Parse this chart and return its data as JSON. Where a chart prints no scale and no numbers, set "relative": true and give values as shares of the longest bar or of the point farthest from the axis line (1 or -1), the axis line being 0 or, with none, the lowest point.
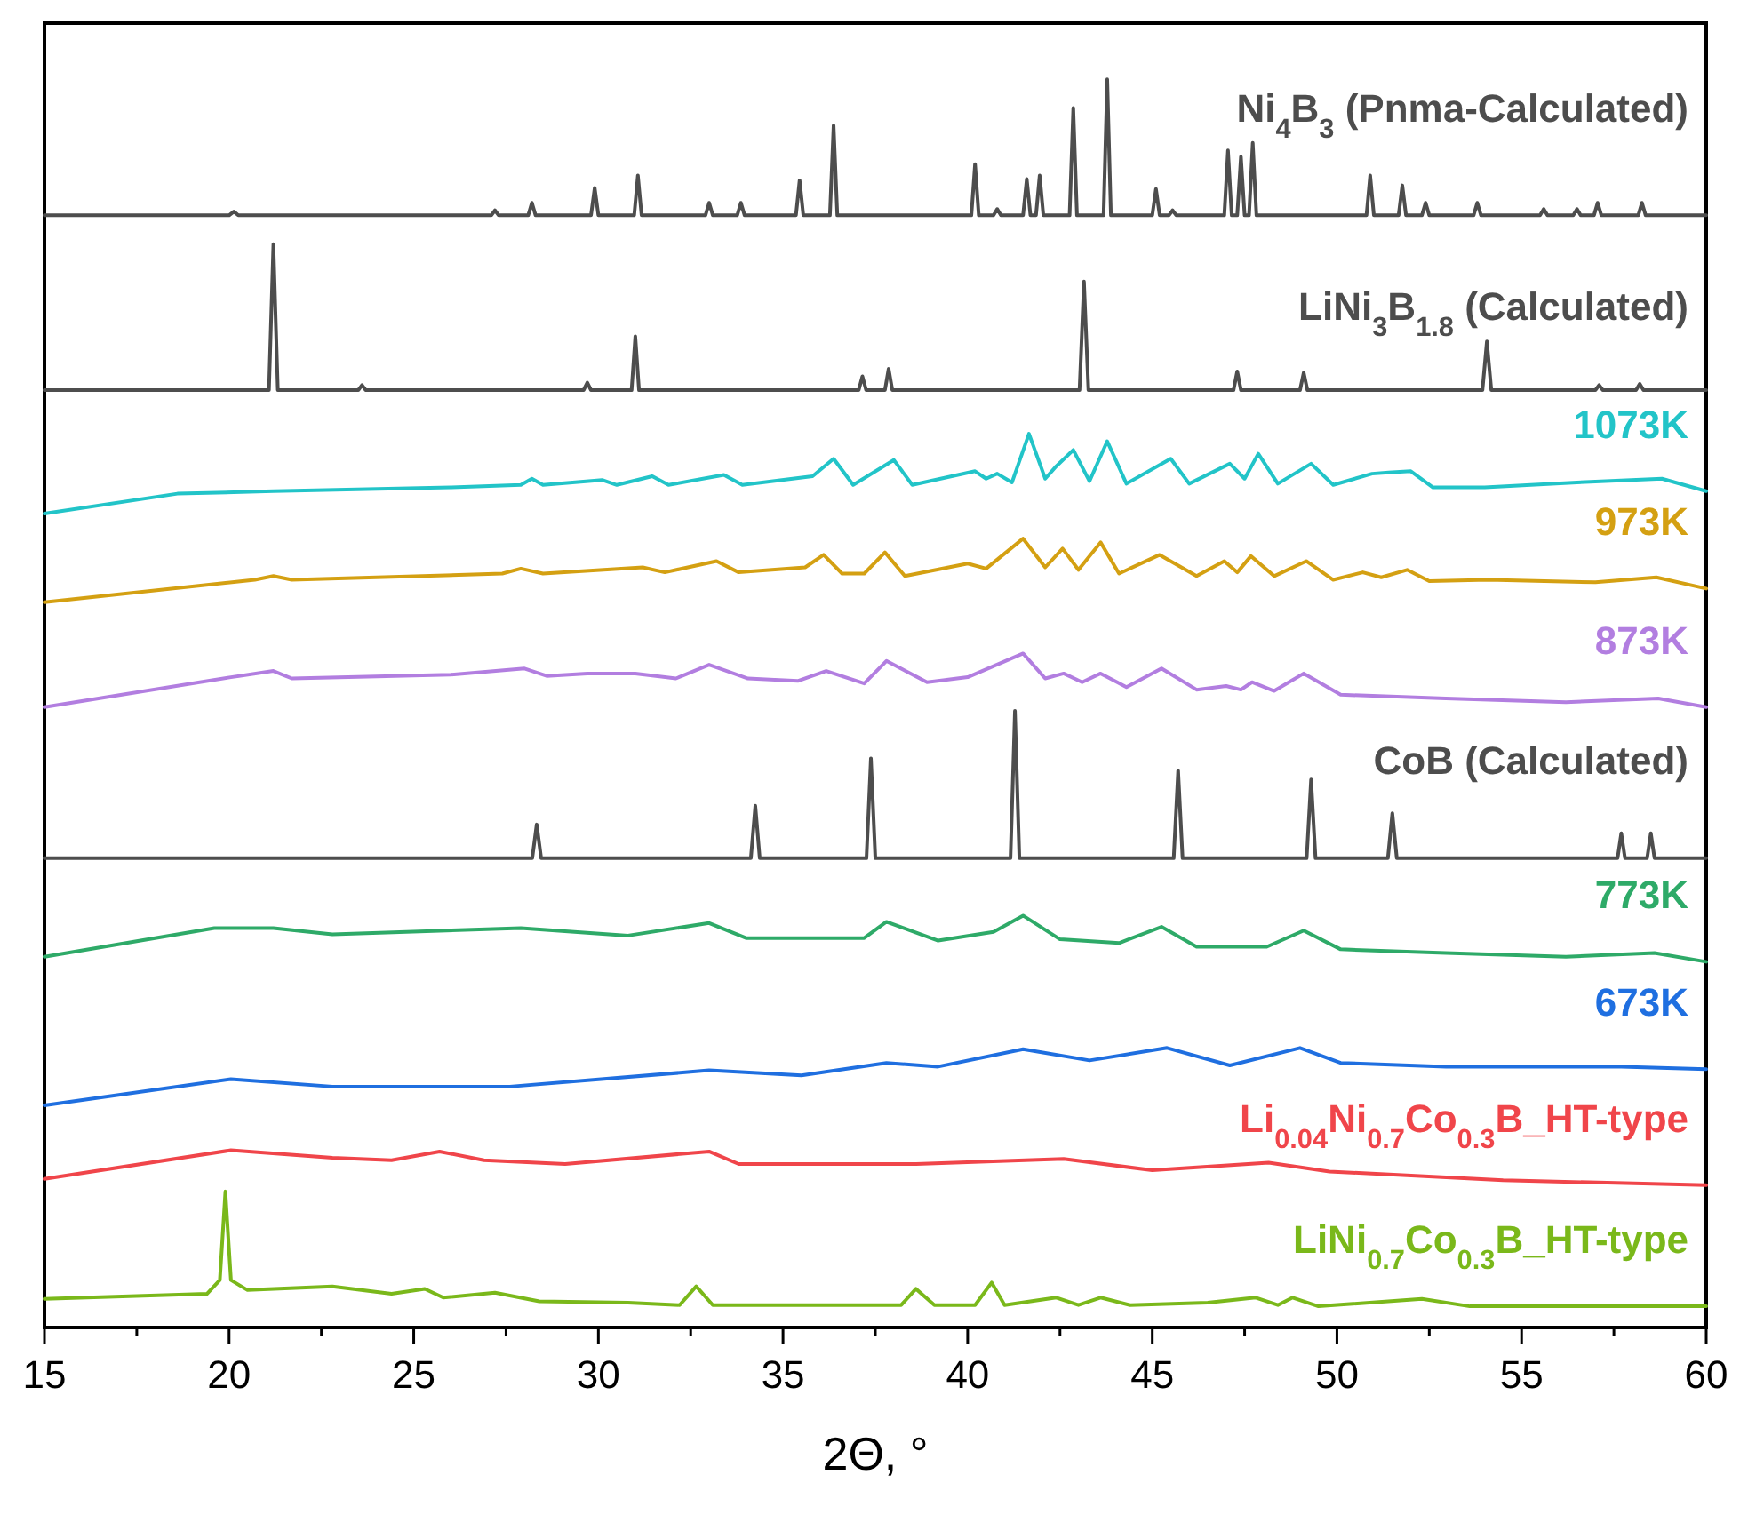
{
  "chart_data": {
    "type": "line",
    "relative": true,
    "xlabel": "2Θ, °",
    "xlim": [
      15,
      60
    ],
    "xticks": [
      15,
      {
        "value": 17.5,
        "label": null
      },
      20,
      {
        "value": 22.5,
        "label": null
      },
      25,
      {
        "value": 27.5,
        "label": null
      },
      30,
      {
        "value": 32.5,
        "label": null
      },
      35,
      {
        "value": 37.5,
        "label": null
      },
      40,
      {
        "value": 42.5,
        "label": null
      },
      45,
      {
        "value": 47.5,
        "label": null
      },
      50,
      {
        "value": 52.5,
        "label": null
      },
      55,
      {
        "value": 57.5,
        "label": null
      },
      60
    ],
    "series": [
      {
        "name": "Ni$_{4}$B$_{3}$ (Pnma-Calculated)",
        "color": "#4d4d4d",
        "x": [
          15,
          20.0,
          20.13,
          20.25,
          27.1,
          27.2,
          27.3,
          28.1,
          28.2,
          28.3,
          29.8,
          29.9,
          30.0,
          30.97,
          31.07,
          31.17,
          32.9,
          33.0,
          33.1,
          33.76,
          33.86,
          33.96,
          35.35,
          35.45,
          35.55,
          36.27,
          36.37,
          36.47,
          40.1,
          40.2,
          40.3,
          40.7,
          40.8,
          40.9,
          41.5,
          41.6,
          41.7,
          41.85,
          41.95,
          42.05,
          42.76,
          42.86,
          42.96,
          43.68,
          43.78,
          43.88,
          45.0,
          45.1,
          45.2,
          45.45,
          45.55,
          45.65,
          46.95,
          47.05,
          47.15,
          47.3,
          47.4,
          47.5,
          47.62,
          47.72,
          47.82,
          50.8,
          50.9,
          51.0,
          51.67,
          51.77,
          51.87,
          52.3,
          52.4,
          52.5,
          53.7,
          53.8,
          53.9,
          55.5,
          55.6,
          55.7,
          56.4,
          56.5,
          56.6,
          56.96,
          57.06,
          57.16,
          58.16,
          58.26,
          58.36,
          60
        ],
        "values": [
          0.891,
          0.891,
          0.894,
          0.891,
          0.891,
          0.895,
          0.891,
          0.891,
          0.901,
          0.891,
          0.891,
          0.913,
          0.891,
          0.891,
          0.923,
          0.891,
          0.891,
          0.901,
          0.891,
          0.891,
          0.901,
          0.891,
          0.891,
          0.919,
          0.891,
          0.891,
          0.963,
          0.891,
          0.891,
          0.932,
          0.891,
          0.891,
          0.896,
          0.891,
          0.891,
          0.92,
          0.891,
          0.891,
          0.923,
          0.891,
          0.891,
          0.977,
          0.891,
          0.891,
          1.0,
          0.891,
          0.891,
          0.912,
          0.891,
          0.891,
          0.895,
          0.891,
          0.891,
          0.943,
          0.891,
          0.891,
          0.938,
          0.891,
          0.891,
          0.949,
          0.891,
          0.891,
          0.923,
          0.891,
          0.891,
          0.915,
          0.891,
          0.891,
          0.901,
          0.891,
          0.891,
          0.901,
          0.891,
          0.891,
          0.896,
          0.891,
          0.891,
          0.896,
          0.891,
          0.891,
          0.901,
          0.891,
          0.891,
          0.901,
          0.891,
          0.891
        ]
      },
      {
        "name": "LiNi$_{3}$B$_{1.8}$ (Calculated)",
        "color": "#4d4d4d",
        "x": [
          15,
          21.08,
          21.2,
          21.32,
          23.5,
          23.6,
          23.7,
          29.6,
          29.7,
          29.8,
          30.9,
          31.0,
          31.1,
          37.05,
          37.15,
          37.25,
          37.76,
          37.86,
          37.96,
          43.03,
          43.15,
          43.27,
          47.2,
          47.3,
          47.4,
          49.0,
          49.1,
          49.2,
          53.94,
          54.06,
          54.18,
          57.0,
          57.1,
          57.2,
          58.1,
          58.2,
          58.3,
          60
        ],
        "values": [
          0.751,
          0.751,
          0.868,
          0.751,
          0.751,
          0.755,
          0.751,
          0.751,
          0.757,
          0.751,
          0.751,
          0.794,
          0.751,
          0.751,
          0.762,
          0.751,
          0.751,
          0.768,
          0.751,
          0.751,
          0.838,
          0.751,
          0.751,
          0.766,
          0.751,
          0.751,
          0.765,
          0.751,
          0.751,
          0.79,
          0.751,
          0.751,
          0.755,
          0.751,
          0.751,
          0.756,
          0.751,
          0.751
        ]
      },
      {
        "name": "1073K",
        "color": "#22c4c8",
        "x": [
          15,
          18.6,
          21.2,
          26.0,
          27.9,
          28.2,
          28.5,
          30.1,
          30.5,
          31.46,
          31.9,
          33.4,
          33.9,
          35.8,
          36.37,
          36.9,
          38.0,
          38.5,
          40.2,
          40.5,
          40.8,
          41.2,
          41.66,
          42.1,
          42.4,
          42.86,
          43.3,
          43.78,
          44.3,
          45.5,
          46.0,
          47.1,
          47.5,
          47.87,
          48.4,
          49.3,
          49.9,
          50.95,
          51.4,
          52.0,
          52.6,
          54.0,
          56.5,
          58.8,
          60
        ],
        "values": [
          0.652,
          0.668,
          0.67,
          0.673,
          0.675,
          0.68,
          0.675,
          0.679,
          0.675,
          0.682,
          0.675,
          0.683,
          0.675,
          0.682,
          0.696,
          0.675,
          0.695,
          0.675,
          0.686,
          0.68,
          0.684,
          0.677,
          0.716,
          0.68,
          0.69,
          0.703,
          0.678,
          0.71,
          0.676,
          0.696,
          0.676,
          0.692,
          0.68,
          0.7,
          0.676,
          0.692,
          0.675,
          0.684,
          0.685,
          0.686,
          0.673,
          0.673,
          0.677,
          0.68,
          0.67
        ]
      },
      {
        "name": "973K",
        "color": "#d4a012",
        "x": [
          15,
          20.7,
          21.2,
          21.7,
          27.4,
          27.9,
          28.5,
          31.2,
          31.8,
          33.2,
          33.8,
          35.6,
          36.1,
          36.6,
          37.2,
          37.76,
          38.3,
          40.0,
          40.5,
          41.5,
          42.1,
          42.57,
          43.0,
          43.6,
          44.1,
          45.2,
          46.2,
          46.95,
          47.3,
          47.67,
          48.3,
          49.17,
          49.9,
          50.7,
          51.2,
          51.9,
          52.5,
          54.1,
          57.0,
          58.65,
          60
        ],
        "values": [
          0.581,
          0.599,
          0.602,
          0.599,
          0.604,
          0.608,
          0.604,
          0.609,
          0.605,
          0.614,
          0.605,
          0.609,
          0.619,
          0.604,
          0.604,
          0.621,
          0.602,
          0.612,
          0.608,
          0.632,
          0.609,
          0.624,
          0.607,
          0.629,
          0.604,
          0.619,
          0.602,
          0.614,
          0.605,
          0.618,
          0.602,
          0.614,
          0.599,
          0.605,
          0.601,
          0.607,
          0.598,
          0.599,
          0.597,
          0.601,
          0.592
        ]
      },
      {
        "name": "873K",
        "color": "#b27ee0",
        "x": [
          15,
          20.05,
          21.2,
          21.7,
          26.0,
          28.0,
          28.6,
          29.7,
          31.0,
          32.1,
          33.0,
          34.05,
          35.4,
          36.17,
          37.2,
          37.8,
          38.9,
          40.0,
          41.5,
          42.1,
          42.6,
          43.1,
          43.6,
          44.3,
          45.25,
          46.2,
          47.0,
          47.4,
          47.7,
          48.3,
          49.1,
          50.1,
          52.95,
          56.2,
          58.7,
          60
        ],
        "values": [
          0.497,
          0.521,
          0.526,
          0.52,
          0.523,
          0.528,
          0.522,
          0.524,
          0.524,
          0.52,
          0.531,
          0.52,
          0.518,
          0.526,
          0.516,
          0.534,
          0.517,
          0.521,
          0.54,
          0.52,
          0.524,
          0.517,
          0.524,
          0.513,
          0.528,
          0.511,
          0.514,
          0.511,
          0.517,
          0.51,
          0.524,
          0.507,
          0.504,
          0.501,
          0.504,
          0.497
        ]
      },
      {
        "name": "CoB (Calculated)",
        "color": "#4d4d4d",
        "x": [
          15,
          28.21,
          28.33,
          28.45,
          34.13,
          34.25,
          34.37,
          37.26,
          37.38,
          37.5,
          41.16,
          41.28,
          41.4,
          45.58,
          45.7,
          45.82,
          49.18,
          49.3,
          49.42,
          51.38,
          51.5,
          51.62,
          57.6,
          57.7,
          57.8,
          58.4,
          58.5,
          58.6,
          60
        ],
        "values": [
          0.376,
          0.376,
          0.403,
          0.376,
          0.376,
          0.418,
          0.376,
          0.376,
          0.456,
          0.376,
          0.376,
          0.494,
          0.376,
          0.376,
          0.446,
          0.376,
          0.376,
          0.439,
          0.376,
          0.376,
          0.412,
          0.376,
          0.376,
          0.396,
          0.376,
          0.376,
          0.396,
          0.376,
          0.376
        ]
      },
      {
        "name": "773K",
        "color": "#2eaa68",
        "x": [
          15,
          19.6,
          21.2,
          22.8,
          27.9,
          30.8,
          33.0,
          34.0,
          37.2,
          37.8,
          39.2,
          40.7,
          41.5,
          42.5,
          44.1,
          45.25,
          46.2,
          48.1,
          49.1,
          50.1,
          52.95,
          56.2,
          58.6,
          60
        ],
        "values": [
          0.297,
          0.32,
          0.32,
          0.315,
          0.32,
          0.314,
          0.324,
          0.312,
          0.312,
          0.325,
          0.31,
          0.317,
          0.33,
          0.311,
          0.308,
          0.321,
          0.305,
          0.305,
          0.318,
          0.303,
          0.3,
          0.297,
          0.3,
          0.293
        ]
      },
      {
        "name": "673K",
        "color": "#1f6fe0",
        "x": [
          15,
          20.05,
          22.8,
          27.6,
          33.0,
          35.5,
          37.8,
          39.2,
          41.5,
          43.3,
          45.4,
          47.1,
          49.0,
          50.1,
          52.95,
          57.7,
          60
        ],
        "values": [
          0.178,
          0.199,
          0.193,
          0.193,
          0.206,
          0.202,
          0.212,
          0.209,
          0.223,
          0.214,
          0.224,
          0.21,
          0.224,
          0.212,
          0.209,
          0.209,
          0.207
        ]
      },
      {
        "name": "Li$_{0.04}$Ni$_{0.7}$Co$_{0.3}$B_HT-type",
        "color": "#f0454a",
        "x": [
          15,
          20.05,
          22.8,
          24.4,
          25.7,
          26.9,
          29.1,
          33.0,
          33.8,
          37.2,
          38.6,
          42.6,
          45.0,
          48.15,
          49.8,
          54.5,
          60
        ],
        "values": [
          0.119,
          0.142,
          0.136,
          0.134,
          0.141,
          0.134,
          0.131,
          0.141,
          0.131,
          0.131,
          0.131,
          0.135,
          0.126,
          0.132,
          0.125,
          0.118,
          0.114
        ]
      },
      {
        "name": "LiNi$_{0.7}$Co$_{0.3}$B_HT-type",
        "color": "#7ab81a",
        "x": [
          15,
          19.4,
          19.75,
          19.9,
          20.05,
          20.5,
          22.8,
          24.4,
          25.3,
          25.8,
          27.2,
          28.4,
          30.8,
          32.2,
          32.65,
          33.1,
          37.2,
          38.2,
          38.6,
          39.1,
          40.2,
          40.65,
          41.0,
          42.4,
          43.0,
          43.6,
          44.4,
          46.5,
          47.8,
          48.4,
          48.8,
          49.5,
          52.3,
          53.6,
          57.6,
          60
        ],
        "values": [
          0.023,
          0.027,
          0.038,
          0.109,
          0.038,
          0.03,
          0.033,
          0.027,
          0.031,
          0.024,
          0.028,
          0.021,
          0.02,
          0.018,
          0.033,
          0.018,
          0.018,
          0.018,
          0.031,
          0.018,
          0.018,
          0.036,
          0.018,
          0.024,
          0.018,
          0.024,
          0.018,
          0.02,
          0.024,
          0.018,
          0.024,
          0.017,
          0.023,
          0.017,
          0.017,
          0.017
        ]
      }
    ]
  }
}
